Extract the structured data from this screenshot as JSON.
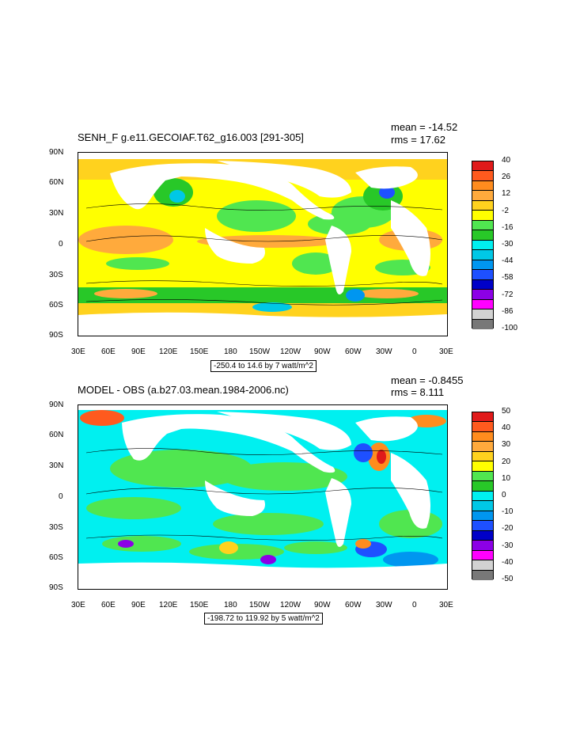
{
  "panels": [
    {
      "title": "SENH_F g.e11.GECOIAF.T62_g16.003 [291-305]",
      "mean": "mean = -14.52",
      "rms": "rms = 17.62",
      "range_label": "-250.4 to 14.6 by 7 watt/m^2",
      "colorbar_labels": [
        "40",
        "26",
        "12",
        "-2",
        "-16",
        "-30",
        "-44",
        "-58",
        "-72",
        "-86",
        "-100"
      ],
      "colorbar_colors": [
        "#e01a1a",
        "#ff5a1e",
        "#ff8c1e",
        "#ffaa3c",
        "#ffd21e",
        "#ffff00",
        "#50e650",
        "#28c828",
        "#00f0f0",
        "#00c8e6",
        "#0096f0",
        "#1e50ff",
        "#0000c8",
        "#8c00e6",
        "#ff00ff",
        "#d2d2d2",
        "#787878"
      ]
    },
    {
      "title": "MODEL - OBS (a.b27.03.mean.1984-2006.nc)",
      "mean": "mean = -0.8455",
      "rms": "rms = 8.111",
      "range_label": "-198.72 to 119.92 by 5 watt/m^2",
      "colorbar_labels": [
        "50",
        "40",
        "30",
        "20",
        "10",
        "0",
        "-10",
        "-20",
        "-30",
        "-40",
        "-50"
      ],
      "colorbar_colors": [
        "#e01a1a",
        "#ff5a1e",
        "#ff8c1e",
        "#ffaa3c",
        "#ffd21e",
        "#ffff00",
        "#50e650",
        "#28c828",
        "#00f0f0",
        "#00c8e6",
        "#0096f0",
        "#1e50ff",
        "#0000c8",
        "#8c00e6",
        "#ff00ff",
        "#d2d2d2",
        "#787878"
      ]
    }
  ],
  "lat_labels": [
    "90N",
    "60N",
    "30N",
    "0",
    "30S",
    "60S",
    "90S"
  ],
  "lon_labels": [
    "30E",
    "60E",
    "90E",
    "120E",
    "150E",
    "180",
    "150W",
    "120W",
    "90W",
    "60W",
    "30W",
    "0",
    "30E"
  ]
}
